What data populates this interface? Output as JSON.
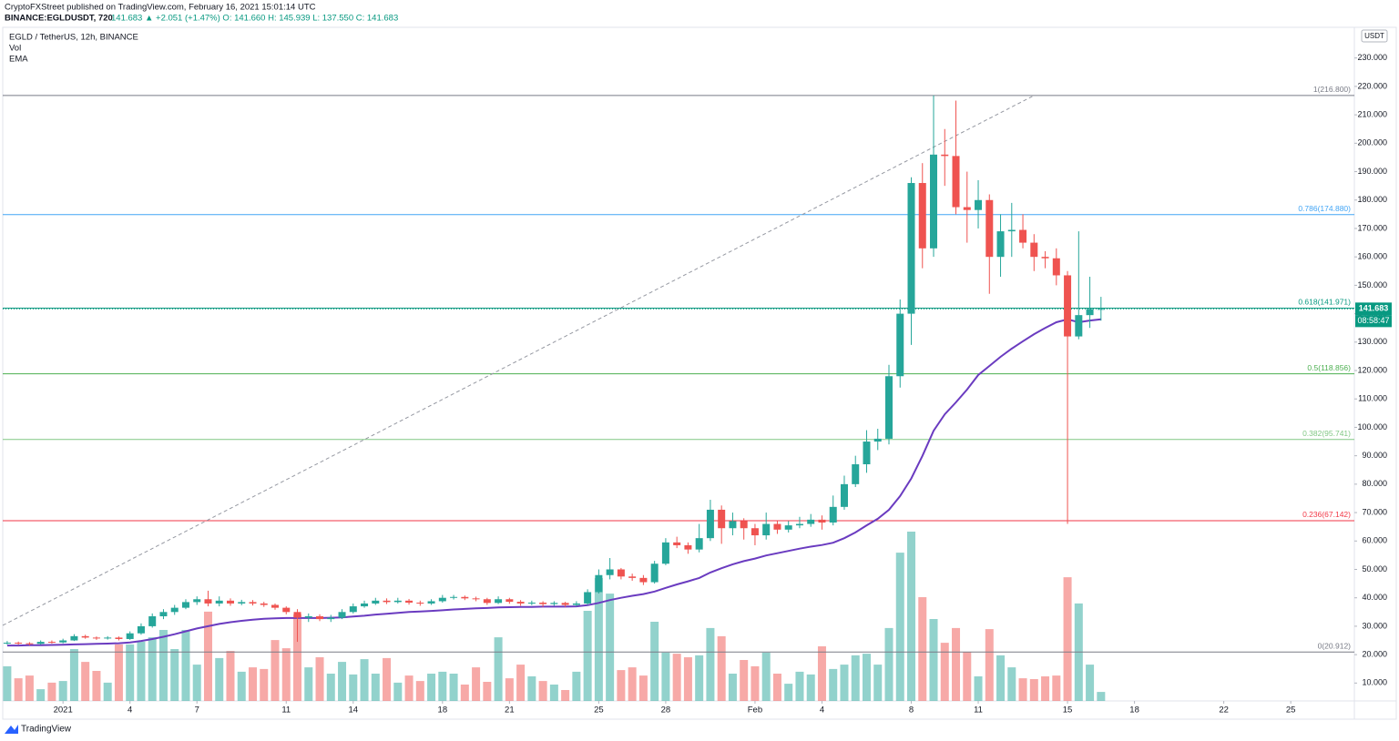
{
  "header": {
    "publisher": "CryptoFXStreet published on TradingView.com, February 16, 2021 15:01:14 UTC",
    "symbol_line": "BINANCE:EGLDUSDT, 720",
    "quote": "141.683 ▲ +2.051 (+1.47%) O: 141.660 H: 145.939 L: 137.550 C: 141.683"
  },
  "chart_data": {
    "type": "candlestick",
    "title": "EGLD / TetherUS, 12h, BINANCE",
    "indicators": [
      "Vol",
      "EMA"
    ],
    "up_color": "#26a69a",
    "down_color": "#ef5350",
    "open": [
      24.0,
      24.2,
      24.0,
      23.8,
      24.5,
      24.3,
      25.0,
      26.5,
      26.0,
      25.7,
      26.0,
      25.5,
      27.5,
      30.0,
      33.5,
      35.0,
      36.5,
      38.5,
      39.5,
      38.0,
      39.0,
      38.0,
      38.5,
      38.0,
      37.5,
      36.5,
      35.0,
      33.0,
      33.5,
      32.5,
      33.0,
      35.0,
      37.0,
      38.0,
      39.0,
      38.5,
      39.0,
      38.3,
      38.0,
      38.8,
      40.0,
      40.3,
      39.8,
      39.5,
      38.2,
      39.5,
      38.6,
      38.0,
      38.3,
      37.8,
      38.2,
      37.5,
      38.0,
      42.0,
      48.0,
      50.0,
      47.5,
      47.0,
      45.5,
      52.0,
      59.5,
      58.5,
      57.0,
      61.0,
      71.0,
      64.5,
      67.0,
      64.5,
      62.0,
      66.0,
      64.0,
      65.5,
      66.0,
      67.5,
      66.5,
      72.0,
      80.0,
      87.0,
      95.0,
      96.0,
      118.0,
      140.0,
      186.0,
      163.0,
      196.0,
      195.5,
      177.5,
      176.5,
      180.0,
      160.0,
      169.0,
      169.5,
      165.0,
      160.0,
      159.5,
      153.5,
      132.0,
      139.5,
      141.66
    ],
    "high": [
      24.8,
      24.6,
      24.4,
      25.0,
      25.0,
      25.6,
      27.2,
      27.0,
      26.4,
      26.5,
      26.4,
      28.2,
      31.0,
      34.5,
      36.0,
      37.5,
      39.5,
      40.5,
      42.5,
      40.5,
      39.8,
      39.3,
      39.2,
      38.6,
      38.0,
      37.0,
      36.0,
      34.5,
      34.2,
      34.0,
      36.0,
      38.0,
      39.0,
      40.0,
      39.8,
      40.0,
      39.6,
      39.0,
      39.5,
      41.0,
      41.0,
      40.8,
      40.4,
      40.0,
      40.5,
      40.0,
      39.2,
      39.0,
      38.8,
      38.8,
      38.6,
      38.8,
      43.0,
      50.0,
      54.0,
      50.5,
      48.5,
      48.0,
      53.0,
      61.0,
      61.5,
      59.5,
      66.0,
      74.5,
      72.5,
      70.0,
      68.0,
      66.0,
      70.0,
      67.0,
      67.0,
      68.5,
      69.5,
      69.0,
      76.0,
      83.0,
      90.0,
      99.0,
      99.5,
      122.0,
      145.0,
      188.0,
      193.0,
      216.8,
      205.0,
      215.0,
      190.0,
      187.0,
      182.0,
      175.0,
      179.0,
      175.0,
      168.0,
      162.0,
      163.0,
      155.0,
      169.0,
      153.0,
      145.939
    ],
    "low": [
      23.6,
      23.5,
      23.3,
      23.5,
      23.9,
      24.0,
      24.8,
      25.6,
      25.2,
      25.3,
      25.0,
      25.2,
      27.0,
      29.5,
      32.5,
      34.0,
      36.0,
      37.5,
      37.0,
      37.0,
      37.2,
      37.4,
      37.3,
      36.8,
      35.8,
      34.2,
      24.5,
      31.5,
      31.8,
      31.5,
      32.5,
      34.5,
      36.5,
      37.5,
      37.8,
      38.0,
      37.6,
      37.2,
      37.5,
      38.3,
      39.4,
      39.2,
      38.8,
      37.5,
      37.8,
      37.9,
      37.2,
      37.4,
      36.8,
      37.2,
      36.8,
      37.0,
      37.5,
      41.5,
      46.5,
      46.5,
      46.0,
      44.5,
      45.0,
      51.5,
      57.5,
      55.5,
      56.0,
      60.0,
      59.0,
      62.0,
      60.5,
      58.5,
      60.5,
      62.5,
      63.0,
      64.5,
      65.0,
      64.0,
      65.5,
      71.0,
      79.0,
      84.0,
      92.0,
      94.0,
      114.0,
      129.0,
      156.0,
      160.0,
      185.0,
      175.0,
      165.0,
      170.0,
      147.0,
      153.0,
      160.0,
      163.0,
      155.0,
      156.0,
      150.0,
      66.0,
      131.0,
      135.0,
      137.55
    ],
    "close": [
      24.2,
      24.0,
      23.8,
      24.5,
      24.3,
      25.0,
      26.5,
      26.0,
      25.7,
      26.0,
      25.5,
      27.5,
      30.0,
      33.5,
      35.0,
      36.5,
      38.5,
      39.5,
      38.0,
      39.0,
      38.0,
      38.5,
      38.0,
      37.5,
      36.5,
      35.0,
      33.0,
      33.5,
      32.5,
      33.0,
      35.0,
      37.0,
      38.0,
      39.0,
      38.5,
      39.0,
      38.3,
      38.0,
      38.8,
      40.0,
      40.3,
      39.8,
      39.5,
      38.2,
      39.5,
      38.6,
      38.0,
      38.3,
      37.8,
      38.2,
      37.5,
      38.0,
      42.0,
      48.0,
      50.0,
      47.5,
      47.0,
      45.5,
      52.0,
      59.5,
      58.5,
      57.0,
      61.0,
      71.0,
      64.5,
      67.0,
      64.5,
      62.0,
      66.0,
      64.0,
      65.5,
      66.0,
      67.5,
      66.5,
      72.0,
      80.0,
      87.0,
      95.0,
      96.0,
      118.0,
      140.0,
      186.0,
      163.0,
      196.0,
      195.5,
      177.5,
      176.5,
      180.0,
      160.0,
      169.0,
      169.5,
      165.0,
      160.0,
      159.5,
      153.5,
      132.0,
      139.5,
      141.66,
      141.683
    ],
    "volume": {
      "up_color": "rgba(38,166,154,0.5)",
      "down_color": "rgba(239,83,80,0.5)",
      "ylim": [
        0,
        100
      ],
      "values": [
        12.7,
        8.3,
        9.3,
        4.3,
        6.7,
        7.3,
        19,
        14.3,
        11,
        6.7,
        20.7,
        20.7,
        21.7,
        23.3,
        26,
        19,
        26,
        13.3,
        32.7,
        15.7,
        18.3,
        10.7,
        12.3,
        11.7,
        22.3,
        19.3,
        31.7,
        12.3,
        16,
        10,
        14.3,
        9.7,
        15.3,
        10,
        15.7,
        6.7,
        9.3,
        7.3,
        10,
        10.7,
        10,
        6,
        12.3,
        7,
        23.3,
        8.3,
        13.3,
        9,
        7.3,
        6,
        4,
        10.7,
        33,
        45,
        39.3,
        11.3,
        12.3,
        9.3,
        29,
        17.7,
        17.3,
        16,
        16.7,
        26.7,
        23.7,
        10,
        15,
        12.7,
        17.7,
        10,
        6.3,
        10.7,
        9.7,
        20,
        11.7,
        13.3,
        16.7,
        17.3,
        13.3,
        26.7,
        54.3,
        62,
        38,
        30,
        21.3,
        26.7,
        18,
        9,
        26.3,
        16.7,
        12.3,
        8.3,
        8,
        9,
        9.3,
        45.3,
        35.7,
        13.3,
        3.3
      ]
    },
    "ema": {
      "color": "#6a3bc0",
      "values": [
        23.2,
        23.2,
        23.3,
        23.3,
        23.4,
        23.5,
        23.6,
        23.7,
        23.8,
        23.9,
        24.0,
        24.3,
        24.8,
        25.5,
        26.3,
        27.2,
        28.2,
        29.2,
        30.0,
        30.8,
        31.4,
        31.9,
        32.3,
        32.6,
        32.8,
        32.9,
        32.9,
        32.9,
        32.9,
        33.0,
        33.1,
        33.4,
        33.7,
        34.1,
        34.4,
        34.7,
        35.0,
        35.2,
        35.4,
        35.6,
        35.9,
        36.1,
        36.3,
        36.4,
        36.6,
        36.7,
        36.8,
        36.8,
        36.9,
        36.9,
        36.9,
        37.0,
        37.4,
        38.2,
        39.2,
        40.0,
        40.7,
        41.3,
        42.2,
        43.5,
        44.7,
        45.8,
        47.0,
        48.9,
        50.4,
        51.8,
        52.9,
        53.8,
        54.9,
        55.7,
        56.5,
        57.3,
        58.0,
        58.6,
        59.4,
        61.0,
        63.0,
        65.5,
        67.8,
        71.0,
        75.8,
        82.0,
        90.0,
        98.8,
        104.6,
        108.8,
        113.3,
        118.4,
        121.6,
        124.8,
        127.7,
        130.3,
        132.8,
        135.0,
        137.0,
        138.0,
        137.0,
        137.6,
        138.0
      ]
    },
    "fib_levels": [
      {
        "value": 216.8,
        "label": "1(216.800)",
        "color": "#787b86"
      },
      {
        "value": 174.88,
        "label": "0.786(174.880)",
        "color": "#42a5f5"
      },
      {
        "value": 141.971,
        "label": "0.618(141.971)",
        "color": "#089981"
      },
      {
        "value": 118.856,
        "label": "0.5(118.856)",
        "color": "#4caf50"
      },
      {
        "value": 95.741,
        "label": "0.382(95.741)",
        "color": "#81c784"
      },
      {
        "value": 67.142,
        "label": "0.236(67.142)",
        "color": "#f23645"
      },
      {
        "value": 20.912,
        "label": "0(20.912)",
        "color": "#787b86"
      }
    ],
    "trend_line": {
      "x": [
        -0.4,
        92
      ],
      "y": [
        30.3,
        216.8
      ],
      "color": "#9598a1"
    },
    "last_price": 141.683,
    "countdown": "08:58:47",
    "last_color": "#089981",
    "y_unit": "USDT",
    "xlim": [
      -0.4,
      120.7
    ],
    "xticks": [
      {
        "value": 5,
        "label": "2021"
      },
      {
        "value": 11,
        "label": "4"
      },
      {
        "value": 17,
        "label": "7"
      },
      {
        "value": 25,
        "label": "11"
      },
      {
        "value": 31,
        "label": "14"
      },
      {
        "value": 39,
        "label": "18"
      },
      {
        "value": 45,
        "label": "21"
      },
      {
        "value": 53,
        "label": "25"
      },
      {
        "value": 59,
        "label": "28"
      },
      {
        "value": 67,
        "label": "Feb"
      },
      {
        "value": 73,
        "label": "4"
      },
      {
        "value": 81,
        "label": "8"
      },
      {
        "value": 87,
        "label": "11"
      },
      {
        "value": 95,
        "label": "15"
      },
      {
        "value": 101,
        "label": "18"
      },
      {
        "value": 109,
        "label": "22"
      },
      {
        "value": 115,
        "label": "25"
      }
    ],
    "ylim": [
      3.7,
      240.8
    ],
    "yticks": [
      {
        "value": 10,
        "label": "10.000"
      },
      {
        "value": 20,
        "label": "20.000"
      },
      {
        "value": 30,
        "label": "30.000"
      },
      {
        "value": 40,
        "label": "40.000"
      },
      {
        "value": 50,
        "label": "50.000"
      },
      {
        "value": 60,
        "label": "60.000"
      },
      {
        "value": 70,
        "label": "70.000"
      },
      {
        "value": 80,
        "label": "80.000"
      },
      {
        "value": 90,
        "label": "90.000"
      },
      {
        "value": 100,
        "label": "100.000"
      },
      {
        "value": 110,
        "label": "110.000"
      },
      {
        "value": 120,
        "label": "120.000"
      },
      {
        "value": 130,
        "label": "130.000"
      },
      {
        "value": 140,
        "label": "140.000"
      },
      {
        "value": 150,
        "label": "150.000"
      },
      {
        "value": 160,
        "label": "160.000"
      },
      {
        "value": 170,
        "label": "170.000"
      },
      {
        "value": 180,
        "label": "180.000"
      },
      {
        "value": 190,
        "label": "190.000"
      },
      {
        "value": 200,
        "label": "200.000"
      },
      {
        "value": 210,
        "label": "210.000"
      },
      {
        "value": 220,
        "label": "220.000"
      },
      {
        "value": 230,
        "label": "230.000"
      }
    ],
    "grid": false
  },
  "footer": {
    "logo": "TradingView"
  }
}
